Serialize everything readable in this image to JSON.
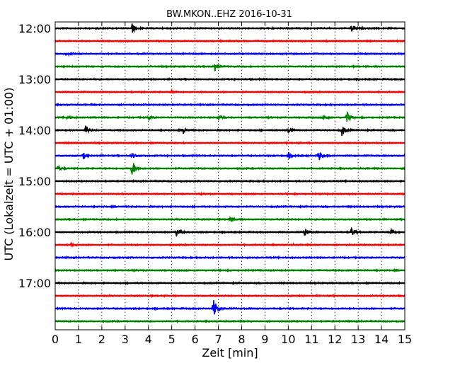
{
  "chart_data": {
    "type": "line",
    "title": "BW.MKON..EHZ 2016-10-31",
    "xlabel": "Zeit  [min]",
    "ylabel": "UTC (Lokalzeit = UTC + 01:00)",
    "xlim": [
      0,
      15
    ],
    "x_ticks": [
      0,
      1,
      2,
      3,
      4,
      5,
      6,
      7,
      8,
      9,
      10,
      11,
      12,
      13,
      14,
      15
    ],
    "x_tick_labels": [
      "0",
      "1",
      "2",
      "3",
      "4",
      "5",
      "6",
      "7",
      "8",
      "9",
      "10",
      "11",
      "12",
      "13",
      "14",
      "15"
    ],
    "y_tick_labels": [
      "12:00",
      "13:00",
      "14:00",
      "15:00",
      "16:00",
      "17:00"
    ],
    "grid": "vertical dotted",
    "trace_interval_min": 15,
    "colors": [
      "#000000",
      "#ff0000",
      "#0000ff",
      "#008000"
    ],
    "traces": [
      {
        "start": "12:00",
        "color": "#000000",
        "events": [
          {
            "t": 3.3,
            "amp": 1.0
          },
          {
            "t": 12.7,
            "amp": 0.8
          }
        ]
      },
      {
        "start": "12:15",
        "color": "#ff0000",
        "events": []
      },
      {
        "start": "12:30",
        "color": "#0000ff",
        "events": [
          {
            "t": 0.5,
            "amp": 0.3
          }
        ]
      },
      {
        "start": "12:45",
        "color": "#008000",
        "events": [
          {
            "t": 6.8,
            "amp": 1.2
          }
        ]
      },
      {
        "start": "13:00",
        "color": "#000000",
        "events": []
      },
      {
        "start": "13:15",
        "color": "#ff0000",
        "events": [
          {
            "t": 5.0,
            "amp": 0.3
          }
        ]
      },
      {
        "start": "13:30",
        "color": "#0000ff",
        "events": []
      },
      {
        "start": "13:45",
        "color": "#008000",
        "events": [
          {
            "t": 0.5,
            "amp": 0.4
          },
          {
            "t": 4.0,
            "amp": 0.4
          },
          {
            "t": 7.0,
            "amp": 0.5
          },
          {
            "t": 11.5,
            "amp": 0.6
          },
          {
            "t": 12.5,
            "amp": 1.3
          }
        ]
      },
      {
        "start": "14:00",
        "color": "#000000",
        "events": [
          {
            "t": 1.3,
            "amp": 0.9
          },
          {
            "t": 5.5,
            "amp": 0.6
          },
          {
            "t": 10.0,
            "amp": 0.7
          },
          {
            "t": 12.3,
            "amp": 1.2
          }
        ]
      },
      {
        "start": "14:15",
        "color": "#ff0000",
        "events": []
      },
      {
        "start": "14:30",
        "color": "#0000ff",
        "events": [
          {
            "t": 1.2,
            "amp": 0.7
          },
          {
            "t": 3.3,
            "amp": 0.6
          },
          {
            "t": 10.0,
            "amp": 0.7
          },
          {
            "t": 11.3,
            "amp": 1.3
          },
          {
            "t": 15.0,
            "amp": 0.5
          }
        ]
      },
      {
        "start": "14:45",
        "color": "#008000",
        "events": [
          {
            "t": 0.1,
            "amp": 0.6
          },
          {
            "t": 3.3,
            "amp": 1.8
          }
        ]
      },
      {
        "start": "15:00",
        "color": "#000000",
        "events": []
      },
      {
        "start": "15:15",
        "color": "#ff0000",
        "events": []
      },
      {
        "start": "15:30",
        "color": "#0000ff",
        "events": []
      },
      {
        "start": "15:45",
        "color": "#008000",
        "events": [
          {
            "t": 7.5,
            "amp": 0.6
          }
        ]
      },
      {
        "start": "16:00",
        "color": "#000000",
        "events": [
          {
            "t": 5.2,
            "amp": 1.0
          },
          {
            "t": 10.7,
            "amp": 0.8
          },
          {
            "t": 12.7,
            "amp": 1.0
          },
          {
            "t": 14.4,
            "amp": 0.8
          }
        ]
      },
      {
        "start": "16:15",
        "color": "#ff0000",
        "events": [
          {
            "t": 0.7,
            "amp": 0.4
          }
        ]
      },
      {
        "start": "16:30",
        "color": "#0000ff",
        "events": []
      },
      {
        "start": "16:45",
        "color": "#008000",
        "events": []
      },
      {
        "start": "17:00",
        "color": "#000000",
        "events": []
      },
      {
        "start": "17:15",
        "color": "#ff0000",
        "events": []
      },
      {
        "start": "17:30",
        "color": "#0000ff",
        "events": [
          {
            "t": 6.8,
            "amp": 2.0
          }
        ]
      },
      {
        "start": "17:45",
        "color": "#008000",
        "events": []
      }
    ]
  }
}
